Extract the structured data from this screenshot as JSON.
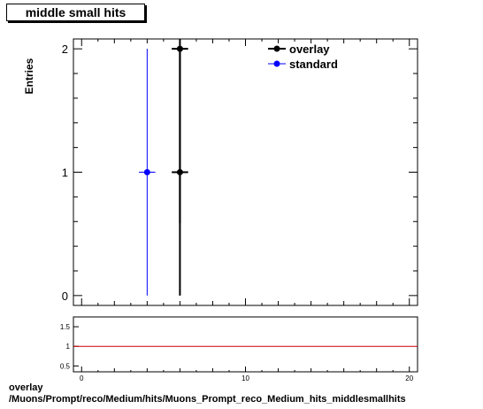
{
  "title": "middle small hits",
  "footer": {
    "line1": "overlay",
    "line2": "/Muons/Prompt/reco/Medium/hits/Muons_Prompt_reco_Medium_hits_middlesmallhits"
  },
  "chart_data": [
    {
      "type": "scatter",
      "title": "middle small hits",
      "ylabel": "Entries",
      "xlabel": "",
      "xlim": [
        -0.5,
        20.5
      ],
      "ylim": [
        -0.08,
        2.08
      ],
      "yticks": [
        0,
        1,
        2
      ],
      "series": [
        {
          "name": "overlay",
          "color": "#000000",
          "points": [
            {
              "x": 6,
              "y": 2,
              "xerr": 0.5,
              "yerr_low": 1.414,
              "yerr_high": 1.414
            },
            {
              "x": 6,
              "y": 1,
              "xerr": 0.5,
              "yerr_low": 1.0,
              "yerr_high": 1.0
            }
          ]
        },
        {
          "name": "standard",
          "color": "#0000ff",
          "points": [
            {
              "x": 4,
              "y": 1,
              "xerr": 0.5,
              "yerr_low": 1.0,
              "yerr_high": 1.0
            }
          ]
        }
      ],
      "legend": "top-right"
    },
    {
      "type": "line",
      "xlim": [
        -0.5,
        20.5
      ],
      "ylim": [
        0.35,
        1.75
      ],
      "xticks": [
        0,
        10,
        20
      ],
      "yticks": [
        0.5,
        1,
        1.5
      ],
      "ytick_labels": [
        "0.5",
        "1",
        "1.5"
      ],
      "reference_line": {
        "y": 1,
        "color": "#cc0000"
      }
    }
  ]
}
